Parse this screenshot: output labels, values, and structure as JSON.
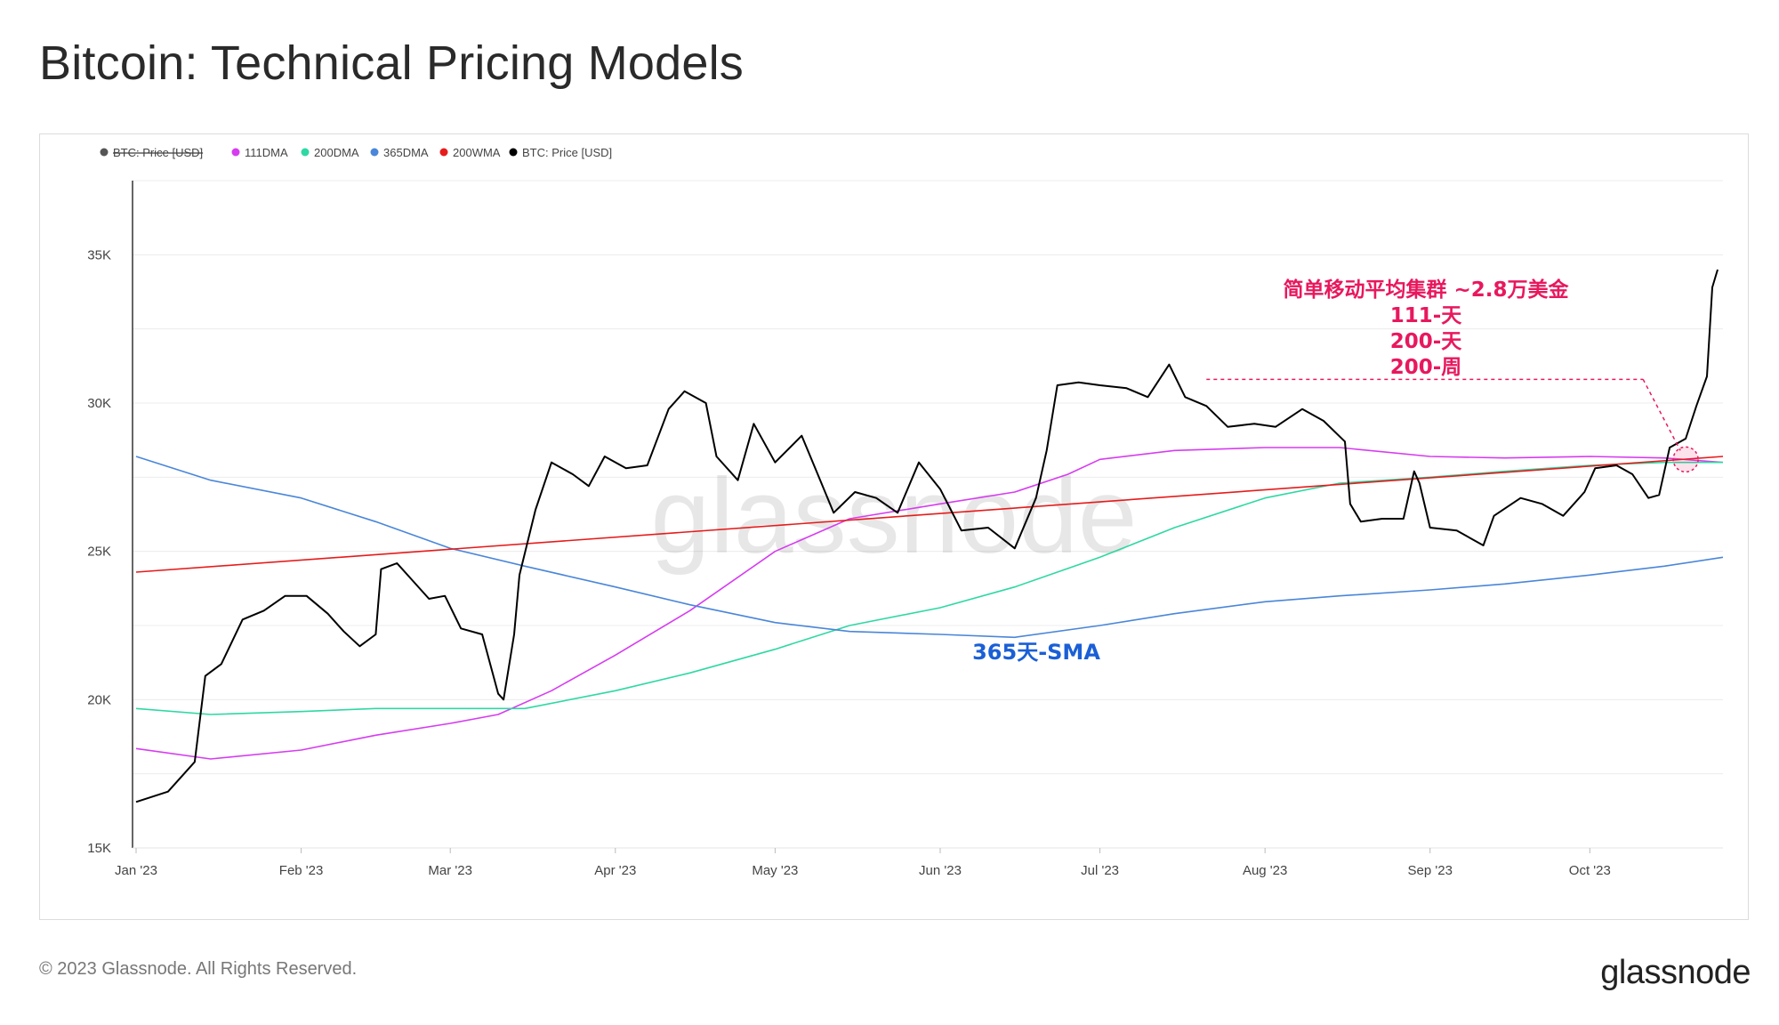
{
  "page": {
    "title": "Bitcoin: Technical Pricing Models",
    "copyright": "© 2023 Glassnode. All Rights Reserved.",
    "logo_text": "glassnode",
    "watermark": "glassnode"
  },
  "chart_data": {
    "type": "line",
    "title": "Bitcoin: Technical Pricing Models",
    "xlabel": "",
    "ylabel": "",
    "ylim": [
      15000,
      37500
    ],
    "x_range": [
      "2023-01-01",
      "2023-10-26"
    ],
    "grid": true,
    "legend_position": "top-left",
    "y_ticks": [
      {
        "value": 15000,
        "label": "15K"
      },
      {
        "value": 20000,
        "label": "20K"
      },
      {
        "value": 25000,
        "label": "25K"
      },
      {
        "value": 30000,
        "label": "30K"
      },
      {
        "value": 35000,
        "label": "35K"
      }
    ],
    "x_ticks": [
      {
        "date": "2023-01-01",
        "label": "Jan '23"
      },
      {
        "date": "2023-02-01",
        "label": "Feb '23"
      },
      {
        "date": "2023-03-01",
        "label": "Mar '23"
      },
      {
        "date": "2023-04-01",
        "label": "Apr '23"
      },
      {
        "date": "2023-05-01",
        "label": "May '23"
      },
      {
        "date": "2023-06-01",
        "label": "Jun '23"
      },
      {
        "date": "2023-07-01",
        "label": "Jul '23"
      },
      {
        "date": "2023-08-01",
        "label": "Aug '23"
      },
      {
        "date": "2023-09-01",
        "label": "Sep '23"
      },
      {
        "date": "2023-10-01",
        "label": "Oct '23"
      }
    ],
    "legend": [
      {
        "name": "BTC: Price [USD]",
        "color": "#555555",
        "disabled": true
      },
      {
        "name": "111DMA",
        "color": "#d63cf0",
        "disabled": false
      },
      {
        "name": "200DMA",
        "color": "#2ed8a3",
        "disabled": false
      },
      {
        "name": "365DMA",
        "color": "#4a86d9",
        "disabled": false
      },
      {
        "name": "200WMA",
        "color": "#e61b1b",
        "disabled": false
      },
      {
        "name": "BTC: Price [USD]",
        "color": "#000000",
        "disabled": false
      }
    ],
    "series": [
      {
        "name": "111DMA",
        "color": "#d63cf0",
        "points": [
          [
            "2023-01-01",
            18350
          ],
          [
            "2023-01-15",
            18000
          ],
          [
            "2023-02-01",
            18300
          ],
          [
            "2023-02-15",
            18800
          ],
          [
            "2023-03-01",
            19200
          ],
          [
            "2023-03-10",
            19500
          ],
          [
            "2023-03-20",
            20300
          ],
          [
            "2023-04-01",
            21500
          ],
          [
            "2023-04-15",
            23000
          ],
          [
            "2023-05-01",
            25000
          ],
          [
            "2023-05-15",
            26100
          ],
          [
            "2023-06-01",
            26600
          ],
          [
            "2023-06-15",
            27000
          ],
          [
            "2023-06-25",
            27600
          ],
          [
            "2023-07-01",
            28100
          ],
          [
            "2023-07-15",
            28400
          ],
          [
            "2023-08-01",
            28500
          ],
          [
            "2023-08-15",
            28500
          ],
          [
            "2023-09-01",
            28200
          ],
          [
            "2023-09-15",
            28150
          ],
          [
            "2023-10-01",
            28200
          ],
          [
            "2023-10-15",
            28150
          ],
          [
            "2023-10-26",
            28000
          ]
        ]
      },
      {
        "name": "200DMA",
        "color": "#2ed8a3",
        "points": [
          [
            "2023-01-01",
            19700
          ],
          [
            "2023-01-15",
            19500
          ],
          [
            "2023-02-01",
            19600
          ],
          [
            "2023-02-15",
            19700
          ],
          [
            "2023-03-01",
            19700
          ],
          [
            "2023-03-15",
            19700
          ],
          [
            "2023-04-01",
            20300
          ],
          [
            "2023-04-15",
            20900
          ],
          [
            "2023-05-01",
            21700
          ],
          [
            "2023-05-15",
            22500
          ],
          [
            "2023-06-01",
            23100
          ],
          [
            "2023-06-15",
            23800
          ],
          [
            "2023-07-01",
            24800
          ],
          [
            "2023-07-15",
            25800
          ],
          [
            "2023-08-01",
            26800
          ],
          [
            "2023-08-15",
            27300
          ],
          [
            "2023-09-01",
            27500
          ],
          [
            "2023-09-15",
            27700
          ],
          [
            "2023-10-01",
            27900
          ],
          [
            "2023-10-15",
            28000
          ],
          [
            "2023-10-26",
            28000
          ]
        ]
      },
      {
        "name": "365DMA",
        "color": "#4a86d9",
        "points": [
          [
            "2023-01-01",
            28200
          ],
          [
            "2023-01-15",
            27400
          ],
          [
            "2023-02-01",
            26800
          ],
          [
            "2023-02-15",
            26000
          ],
          [
            "2023-03-01",
            25100
          ],
          [
            "2023-03-15",
            24500
          ],
          [
            "2023-04-01",
            23800
          ],
          [
            "2023-04-15",
            23200
          ],
          [
            "2023-05-01",
            22600
          ],
          [
            "2023-05-15",
            22300
          ],
          [
            "2023-06-01",
            22200
          ],
          [
            "2023-06-15",
            22100
          ],
          [
            "2023-07-01",
            22500
          ],
          [
            "2023-07-15",
            22900
          ],
          [
            "2023-08-01",
            23300
          ],
          [
            "2023-08-15",
            23500
          ],
          [
            "2023-09-01",
            23700
          ],
          [
            "2023-09-15",
            23900
          ],
          [
            "2023-10-01",
            24200
          ],
          [
            "2023-10-15",
            24500
          ],
          [
            "2023-10-26",
            24800
          ]
        ]
      },
      {
        "name": "200WMA",
        "color": "#e61b1b",
        "points": [
          [
            "2023-01-01",
            24300
          ],
          [
            "2023-10-26",
            28200
          ]
        ]
      },
      {
        "name": "BTC: Price [USD]",
        "color": "#000000",
        "points": [
          [
            "2023-01-01",
            16550
          ],
          [
            "2023-01-07",
            16900
          ],
          [
            "2023-01-12",
            17900
          ],
          [
            "2023-01-14",
            20800
          ],
          [
            "2023-01-17",
            21200
          ],
          [
            "2023-01-21",
            22700
          ],
          [
            "2023-01-25",
            23000
          ],
          [
            "2023-01-29",
            23500
          ],
          [
            "2023-02-02",
            23500
          ],
          [
            "2023-02-06",
            22900
          ],
          [
            "2023-02-09",
            22300
          ],
          [
            "2023-02-12",
            21800
          ],
          [
            "2023-02-15",
            22200
          ],
          [
            "2023-02-16",
            24400
          ],
          [
            "2023-02-19",
            24600
          ],
          [
            "2023-02-22",
            24000
          ],
          [
            "2023-02-25",
            23400
          ],
          [
            "2023-02-28",
            23500
          ],
          [
            "2023-03-03",
            22400
          ],
          [
            "2023-03-07",
            22200
          ],
          [
            "2023-03-10",
            20200
          ],
          [
            "2023-03-11",
            20000
          ],
          [
            "2023-03-13",
            22200
          ],
          [
            "2023-03-14",
            24200
          ],
          [
            "2023-03-17",
            26400
          ],
          [
            "2023-03-20",
            28000
          ],
          [
            "2023-03-24",
            27600
          ],
          [
            "2023-03-27",
            27200
          ],
          [
            "2023-03-30",
            28200
          ],
          [
            "2023-04-03",
            27800
          ],
          [
            "2023-04-07",
            27900
          ],
          [
            "2023-04-11",
            29800
          ],
          [
            "2023-04-14",
            30400
          ],
          [
            "2023-04-18",
            30000
          ],
          [
            "2023-04-20",
            28200
          ],
          [
            "2023-04-24",
            27400
          ],
          [
            "2023-04-27",
            29300
          ],
          [
            "2023-05-01",
            28000
          ],
          [
            "2023-05-06",
            28900
          ],
          [
            "2023-05-09",
            27600
          ],
          [
            "2023-05-12",
            26300
          ],
          [
            "2023-05-16",
            27000
          ],
          [
            "2023-05-20",
            26800
          ],
          [
            "2023-05-24",
            26300
          ],
          [
            "2023-05-28",
            28000
          ],
          [
            "2023-06-01",
            27100
          ],
          [
            "2023-06-05",
            25700
          ],
          [
            "2023-06-10",
            25800
          ],
          [
            "2023-06-15",
            25100
          ],
          [
            "2023-06-19",
            26800
          ],
          [
            "2023-06-21",
            28400
          ],
          [
            "2023-06-23",
            30600
          ],
          [
            "2023-06-27",
            30700
          ],
          [
            "2023-07-01",
            30600
          ],
          [
            "2023-07-06",
            30500
          ],
          [
            "2023-07-10",
            30200
          ],
          [
            "2023-07-14",
            31300
          ],
          [
            "2023-07-17",
            30200
          ],
          [
            "2023-07-21",
            29900
          ],
          [
            "2023-07-25",
            29200
          ],
          [
            "2023-07-30",
            29300
          ],
          [
            "2023-08-03",
            29200
          ],
          [
            "2023-08-08",
            29800
          ],
          [
            "2023-08-12",
            29400
          ],
          [
            "2023-08-16",
            28700
          ],
          [
            "2023-08-17",
            26600
          ],
          [
            "2023-08-19",
            26000
          ],
          [
            "2023-08-23",
            26100
          ],
          [
            "2023-08-27",
            26100
          ],
          [
            "2023-08-29",
            27700
          ],
          [
            "2023-08-30",
            27300
          ],
          [
            "2023-09-01",
            25800
          ],
          [
            "2023-09-06",
            25700
          ],
          [
            "2023-09-11",
            25200
          ],
          [
            "2023-09-13",
            26200
          ],
          [
            "2023-09-18",
            26800
          ],
          [
            "2023-09-22",
            26600
          ],
          [
            "2023-09-26",
            26200
          ],
          [
            "2023-09-30",
            27000
          ],
          [
            "2023-10-02",
            27800
          ],
          [
            "2023-10-06",
            27900
          ],
          [
            "2023-10-09",
            27600
          ],
          [
            "2023-10-12",
            26800
          ],
          [
            "2023-10-14",
            26900
          ],
          [
            "2023-10-16",
            28500
          ],
          [
            "2023-10-19",
            28800
          ],
          [
            "2023-10-21",
            29900
          ],
          [
            "2023-10-23",
            30900
          ],
          [
            "2023-10-24",
            33900
          ],
          [
            "2023-10-25",
            34500
          ]
        ]
      }
    ],
    "annotations": [
      {
        "id": "cluster",
        "lines": [
          "简单移动平均集群 ~2.8万美金",
          "111-天",
          "200-天",
          "200-周"
        ],
        "color": "#e8185d",
        "guide_date": "2023-07-21",
        "guide_end_date": "2023-10-11",
        "guide_value": 30800,
        "target_date": "2023-10-19",
        "target_value": 28100
      },
      {
        "id": "sma365",
        "lines": [
          "365天-SMA"
        ],
        "color": "#1a5fd6"
      }
    ]
  }
}
